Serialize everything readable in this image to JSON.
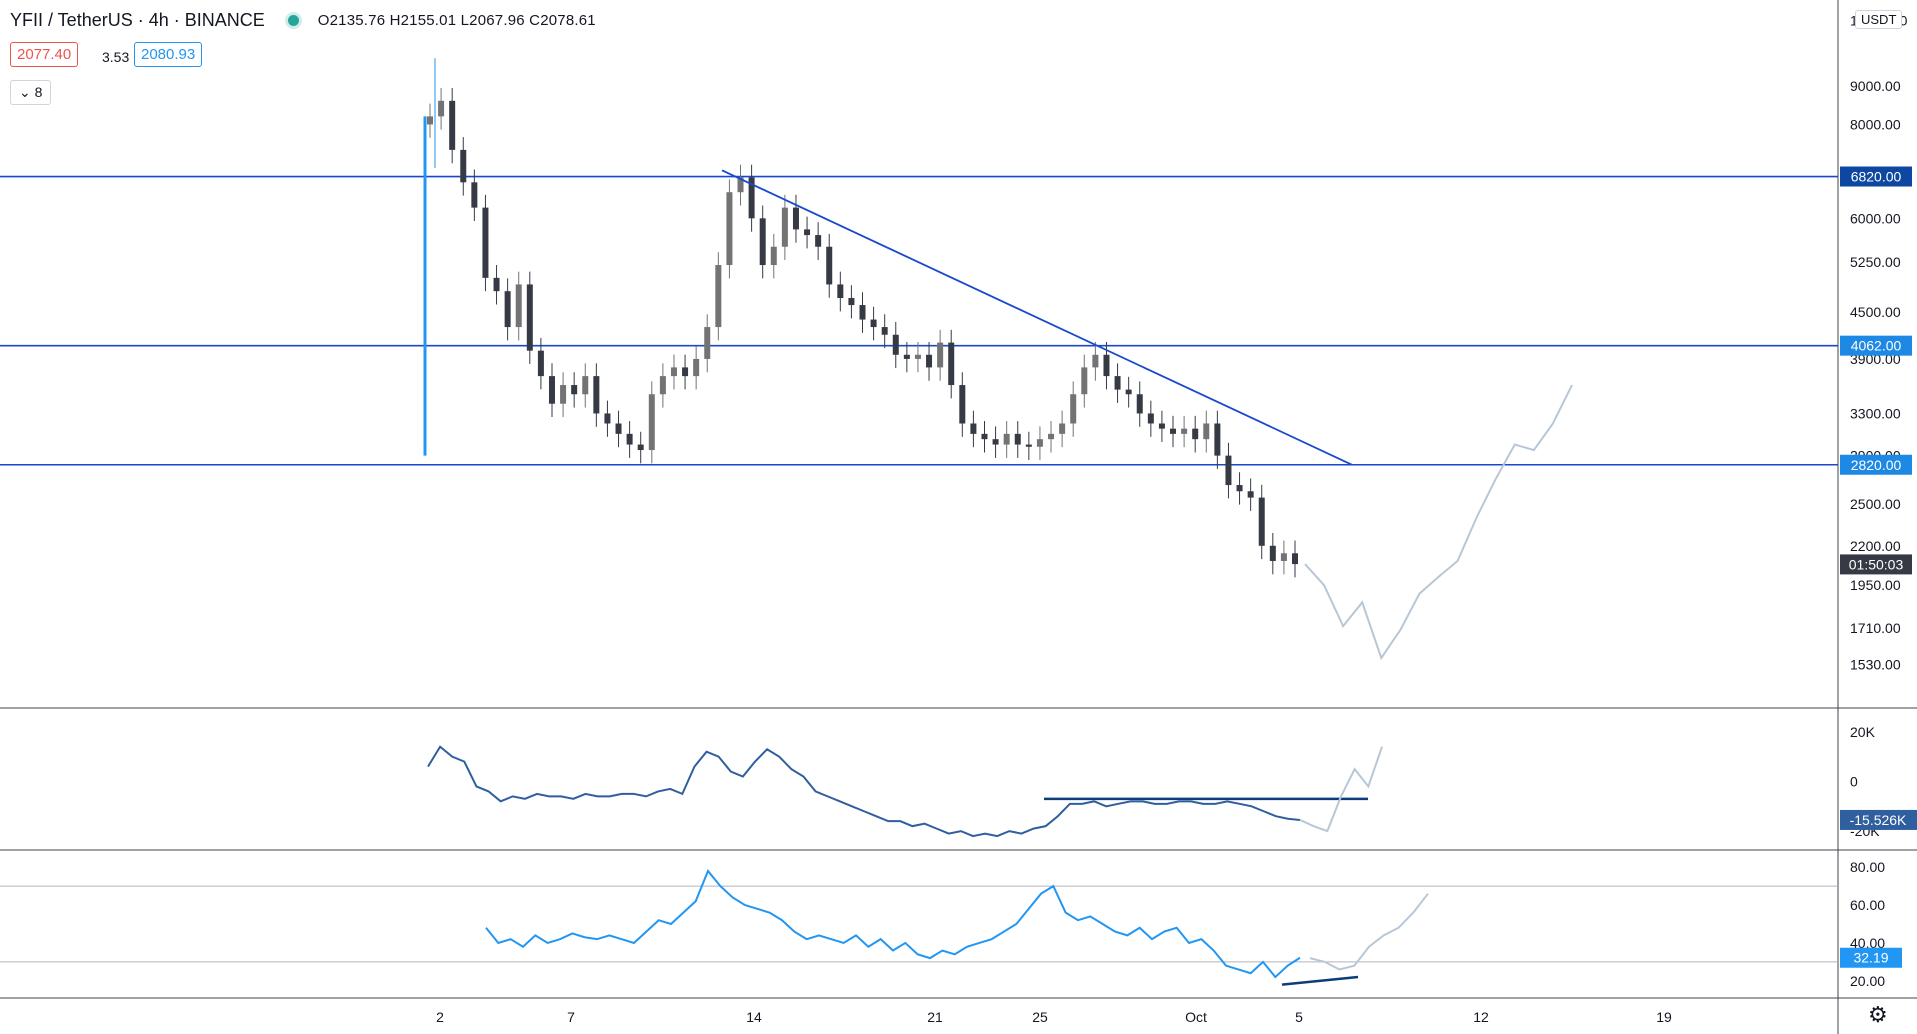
{
  "header": {
    "symbol": "YFII / TetherUS · 4h · BINANCE",
    "ohlc": "O2135.76  H2155.01  L2067.96  C2078.61",
    "bid": "2077.40",
    "spread": "3.53",
    "ask": "2080.93",
    "indicators_toggle": "8",
    "currency": "USDT"
  },
  "colors": {
    "up": "#737375",
    "down": "#363a45",
    "line_blue": "#1848cc",
    "price_tag": "#1e88e5",
    "obv": "#2f5f9e",
    "rsi": "#2196f3",
    "projection": "#b8c7d6"
  },
  "chart_data": [
    {
      "type": "candlestick",
      "title": "",
      "series": [
        {
          "name": "",
          "x": [
            "2",
            "7",
            "14",
            "21",
            "25",
            "Oct",
            "5",
            "12",
            "19"
          ]
        }
      ],
      "y_ticks": [
        "11000.00",
        "9000.00",
        "8000.00",
        "6000.00",
        "5250.00",
        "4500.00",
        "3900.00",
        "3300.00",
        "2900.00",
        "2500.00",
        "2200.00",
        "1950.00",
        "1710.00",
        "1530.00"
      ],
      "y_scale": "log",
      "horizontal_levels": [
        {
          "price": 6820,
          "label": "6820.00"
        },
        {
          "price": 4062,
          "label": "4062.00"
        },
        {
          "price": 2820,
          "label": "2820.00"
        }
      ],
      "timer_label": "01:50:03",
      "trendline": {
        "from_price": 6950,
        "to_price": 2820
      },
      "price_path": [
        8200,
        8600,
        7400,
        6700,
        6200,
        5000,
        4800,
        4300,
        4900,
        4000,
        3700,
        3400,
        3600,
        3500,
        3700,
        3300,
        3200,
        3100,
        3000,
        2950,
        3500,
        3700,
        3800,
        3700,
        3900,
        4300,
        5200,
        6500,
        6800,
        6000,
        5200,
        5500,
        6200,
        5800,
        5700,
        5500,
        4900,
        4700,
        4600,
        4400,
        4300,
        4200,
        3950,
        3900,
        3950,
        3800,
        4100,
        3600,
        3200,
        3100,
        3050,
        3000,
        3100,
        3000,
        2980,
        3050,
        3100,
        3200,
        3500,
        3800,
        3950,
        3700,
        3550,
        3500,
        3300,
        3200,
        3150,
        3100,
        3150,
        3050,
        3200,
        2900,
        2650,
        2600,
        2550,
        2200,
        2100,
        2150,
        2080
      ],
      "projection": [
        2080,
        1950,
        1720,
        1850,
        1560,
        1700,
        1900,
        2000,
        2100,
        2400,
        2700,
        3000,
        2950,
        3200,
        3600
      ]
    },
    {
      "type": "line",
      "title": "",
      "y_ticks": [
        "20K",
        "0",
        "-20K"
      ],
      "current_label": "-15.526K",
      "values": [
        6,
        14,
        10,
        8,
        -2,
        -4,
        -8,
        -6,
        -7,
        -5,
        -6,
        -6,
        -7,
        -5,
        -6,
        -6,
        -5,
        -5,
        -6,
        -4,
        -3,
        -5,
        6,
        12,
        10,
        4,
        2,
        8,
        13,
        10,
        5,
        2,
        -4,
        -6,
        -8,
        -10,
        -12,
        -14,
        -16,
        -16,
        -18,
        -17,
        -19,
        -21,
        -20,
        -22,
        -21,
        -22,
        -20,
        -21,
        -19,
        -18,
        -14,
        -9,
        -9,
        -8,
        -10,
        -9,
        -8,
        -8,
        -9,
        -9,
        -8,
        -8,
        -9,
        -9,
        -8,
        -9,
        -10,
        -12,
        -14,
        -15,
        -15.5
      ],
      "horizontal_line": -7,
      "projection": [
        -15.5,
        -18,
        -20,
        -6,
        5,
        -2,
        14
      ]
    },
    {
      "type": "line",
      "title": "",
      "y_ticks": [
        "80.00",
        "60.00",
        "40.00",
        "20.00"
      ],
      "current_label": "32.19",
      "bands": [
        70,
        30
      ],
      "values": [
        48,
        40,
        42,
        38,
        44,
        40,
        42,
        45,
        43,
        42,
        44,
        42,
        40,
        46,
        52,
        50,
        56,
        62,
        78,
        70,
        64,
        60,
        58,
        56,
        52,
        46,
        42,
        44,
        42,
        40,
        44,
        38,
        42,
        36,
        40,
        34,
        32,
        36,
        34,
        38,
        40,
        42,
        46,
        50,
        58,
        66,
        70,
        56,
        52,
        54,
        50,
        46,
        44,
        48,
        42,
        46,
        48,
        40,
        42,
        36,
        28,
        26,
        24,
        30,
        22,
        28,
        32.19
      ],
      "divergence_line": [
        18,
        22
      ],
      "projection": [
        32,
        30,
        26,
        28,
        38,
        44,
        48,
        56,
        66
      ]
    }
  ]
}
